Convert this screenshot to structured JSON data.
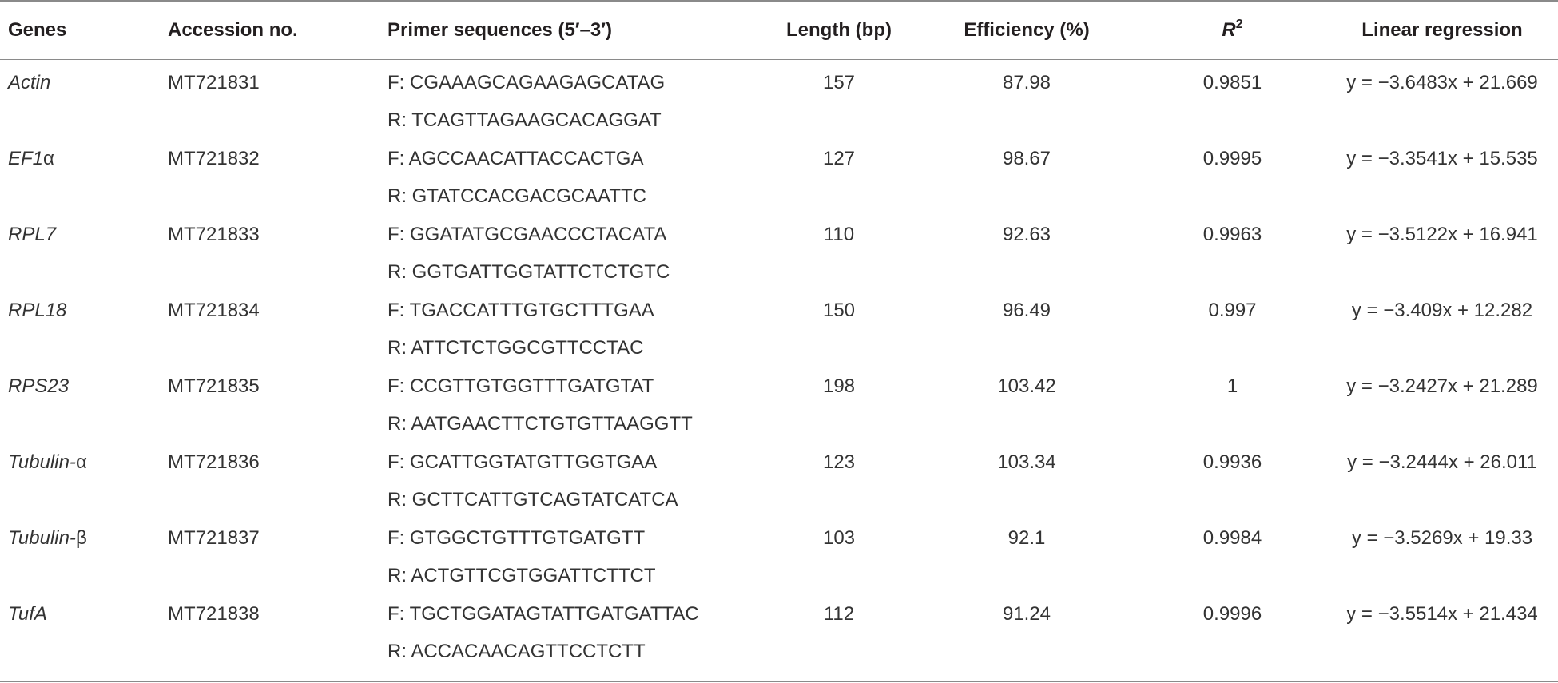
{
  "table": {
    "headers": {
      "genes": "Genes",
      "accession": "Accession no.",
      "primers": "Primer sequences (5′–3′)",
      "length": "Length (bp)",
      "efficiency": "Efficiency (%)",
      "r2_letter": "R",
      "r2_sup": "2",
      "regression": "Linear regression"
    },
    "rows": [
      {
        "gene_italic": "Actin",
        "gene_suffix": "",
        "accession": "MT721831",
        "primer_f": "F: CGAAAGCAGAAGAGCATAG",
        "primer_r": "R: TCAGTTAGAAGCACAGGAT",
        "length": "157",
        "efficiency": "87.98",
        "r2": "0.9851",
        "regression": "y = −3.6483x + 21.669"
      },
      {
        "gene_italic": "EF1",
        "gene_suffix": "α",
        "accession": "MT721832",
        "primer_f": "F: AGCCAACATTACCACTGA",
        "primer_r": "R: GTATCCACGACGCAATTC",
        "length": "127",
        "efficiency": "98.67",
        "r2": "0.9995",
        "regression": "y = −3.3541x + 15.535"
      },
      {
        "gene_italic": "RPL7",
        "gene_suffix": "",
        "accession": "MT721833",
        "primer_f": "F: GGATATGCGAACCCTACATA",
        "primer_r": "R: GGTGATTGGTATTCTCTGTC",
        "length": "110",
        "efficiency": "92.63",
        "r2": "0.9963",
        "regression": "y = −3.5122x + 16.941"
      },
      {
        "gene_italic": "RPL18",
        "gene_suffix": "",
        "accession": "MT721834",
        "primer_f": "F: TGACCATTTGTGCTTTGAA",
        "primer_r": "R: ATTCTCTGGCGTTCCTAC",
        "length": "150",
        "efficiency": "96.49",
        "r2": "0.997",
        "regression": "y = −3.409x + 12.282"
      },
      {
        "gene_italic": "RPS23",
        "gene_suffix": "",
        "accession": "MT721835",
        "primer_f": "F: CCGTTGTGGTTTGATGTAT",
        "primer_r": "R: AATGAACTTCTGTGTTAAGGTT",
        "length": "198",
        "efficiency": "103.42",
        "r2": "1",
        "regression": "y = −3.2427x + 21.289"
      },
      {
        "gene_italic": "Tubulin-",
        "gene_suffix": "α",
        "accession": "MT721836",
        "primer_f": "F: GCATTGGTATGTTGGTGAA",
        "primer_r": "R: GCTTCATTGTCAGTATCATCA",
        "length": "123",
        "efficiency": "103.34",
        "r2": "0.9936",
        "regression": "y = −3.2444x + 26.011"
      },
      {
        "gene_italic": "Tubulin-",
        "gene_suffix": "β",
        "accession": "MT721837",
        "primer_f": "F: GTGGCTGTTTGTGATGTT",
        "primer_r": "R: ACTGTTCGTGGATTCTTCT",
        "length": "103",
        "efficiency": "92.1",
        "r2": "0.9984",
        "regression": "y = −3.5269x + 19.33"
      },
      {
        "gene_italic": "TufA",
        "gene_suffix": "",
        "accession": "MT721838",
        "primer_f": "F: TGCTGGATAGTATTGATGATTAC",
        "primer_r": "R: ACCACAACAGTTCCTCTT",
        "length": "112",
        "efficiency": "91.24",
        "r2": "0.9996",
        "regression": "y = −3.5514x + 21.434"
      }
    ]
  }
}
